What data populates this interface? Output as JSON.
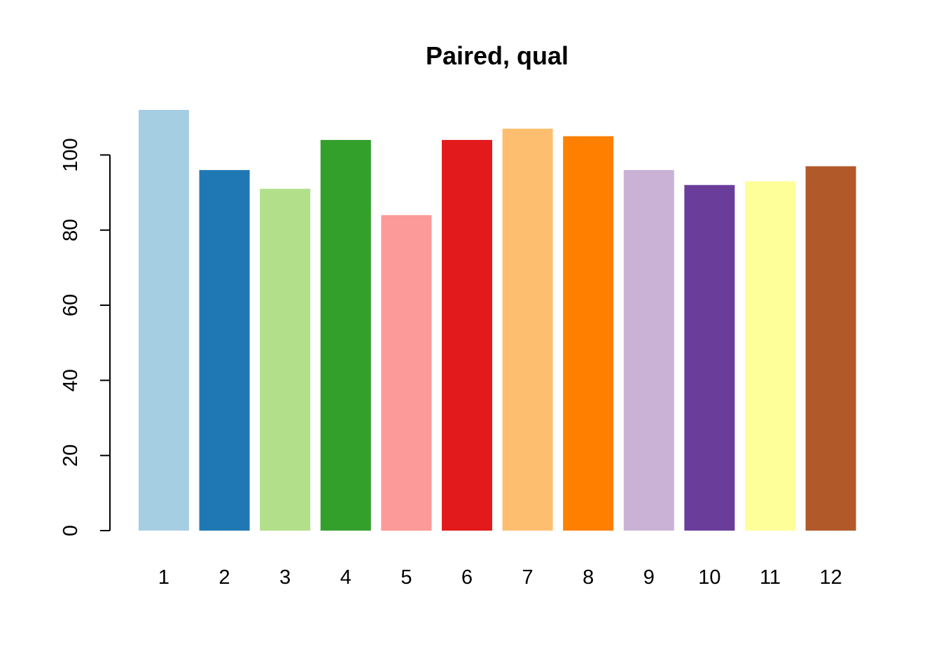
{
  "chart_data": {
    "type": "bar",
    "title": "Paired, qual",
    "xlabel": "",
    "ylabel": "",
    "categories": [
      "1",
      "2",
      "3",
      "4",
      "5",
      "6",
      "7",
      "8",
      "9",
      "10",
      "11",
      "12"
    ],
    "values": [
      112,
      96,
      91,
      104,
      84,
      104,
      107,
      105,
      96,
      92,
      93,
      97
    ],
    "colors": [
      "#A6CEE3",
      "#1F78B4",
      "#B2DF8A",
      "#33A02C",
      "#FB9A99",
      "#E31A1C",
      "#FDBF6F",
      "#FF7F00",
      "#CAB2D6",
      "#6A3D9A",
      "#FFFF99",
      "#B15928"
    ],
    "ylim": [
      0,
      112
    ],
    "yticks": [
      0,
      20,
      40,
      60,
      80,
      100
    ],
    "grid": false,
    "legend": "none"
  }
}
